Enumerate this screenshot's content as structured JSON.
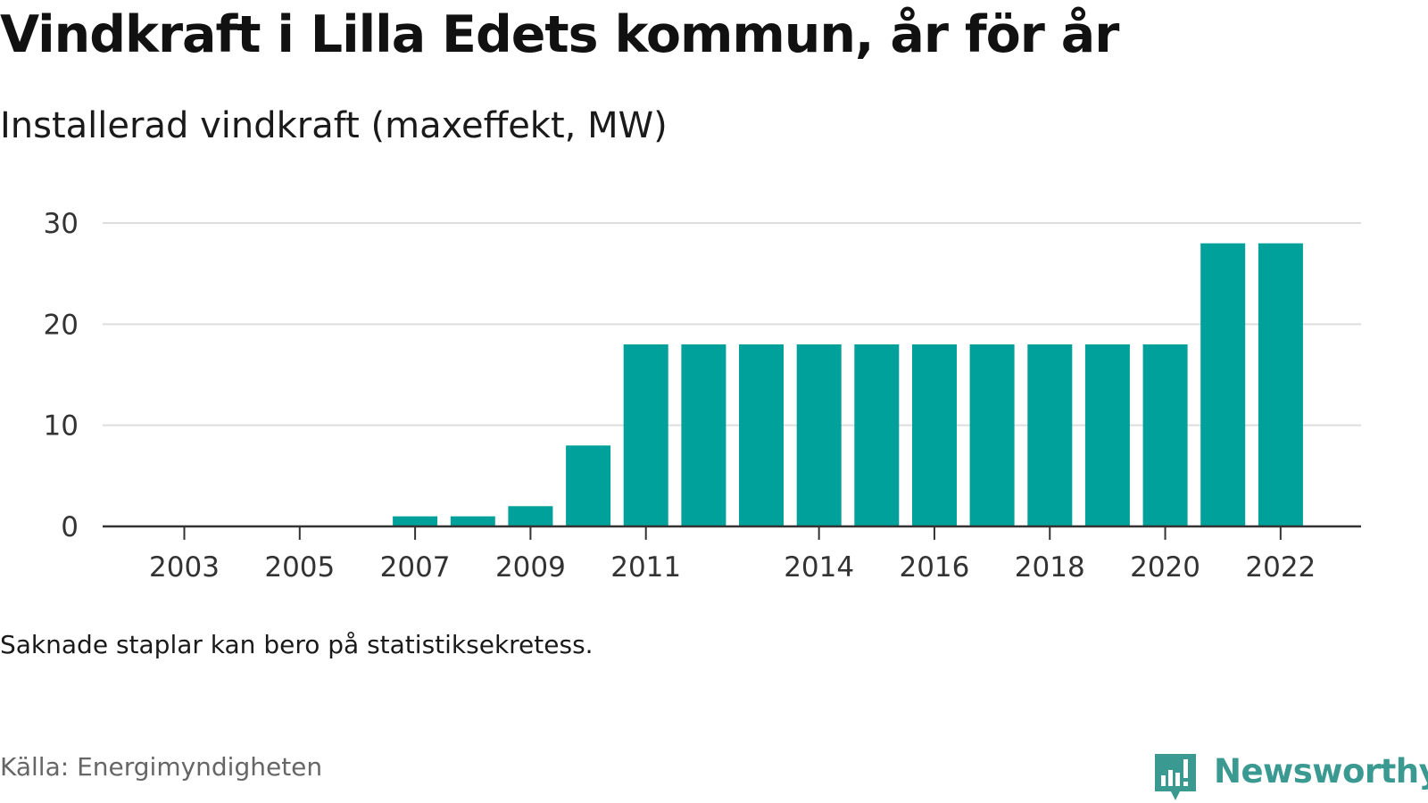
{
  "title": "Vindkraft i Lilla Edets kommun, år för år",
  "subtitle": "Installerad vindkraft (maxeffekt, MW)",
  "note": "Saknade staplar kan bero på statistiksekretess.",
  "source": "Källa: Energimyndigheten",
  "brand": {
    "name": "Newsworthy",
    "logo_icon": "bar-chart-speech-bubble-icon",
    "color": "#3a9a92"
  },
  "chart_data": {
    "type": "bar",
    "bar_color": "#00a19a",
    "categories": [
      2003,
      2004,
      2005,
      2006,
      2007,
      2008,
      2009,
      2010,
      2011,
      2012,
      2013,
      2014,
      2015,
      2016,
      2017,
      2018,
      2019,
      2020,
      2021,
      2022
    ],
    "values": [
      0,
      0,
      0,
      0,
      1,
      1,
      2,
      8,
      18,
      18,
      18,
      18,
      18,
      18,
      18,
      18,
      18,
      18,
      28,
      28
    ],
    "x_tick_labels": [
      "2003",
      "2005",
      "2007",
      "2009",
      "2011",
      "2014",
      "2016",
      "2018",
      "2020",
      "2022"
    ],
    "y_ticks": [
      0,
      10,
      20,
      30
    ],
    "ylim": [
      0,
      30
    ],
    "grid": true,
    "xlabel": "",
    "ylabel": ""
  }
}
